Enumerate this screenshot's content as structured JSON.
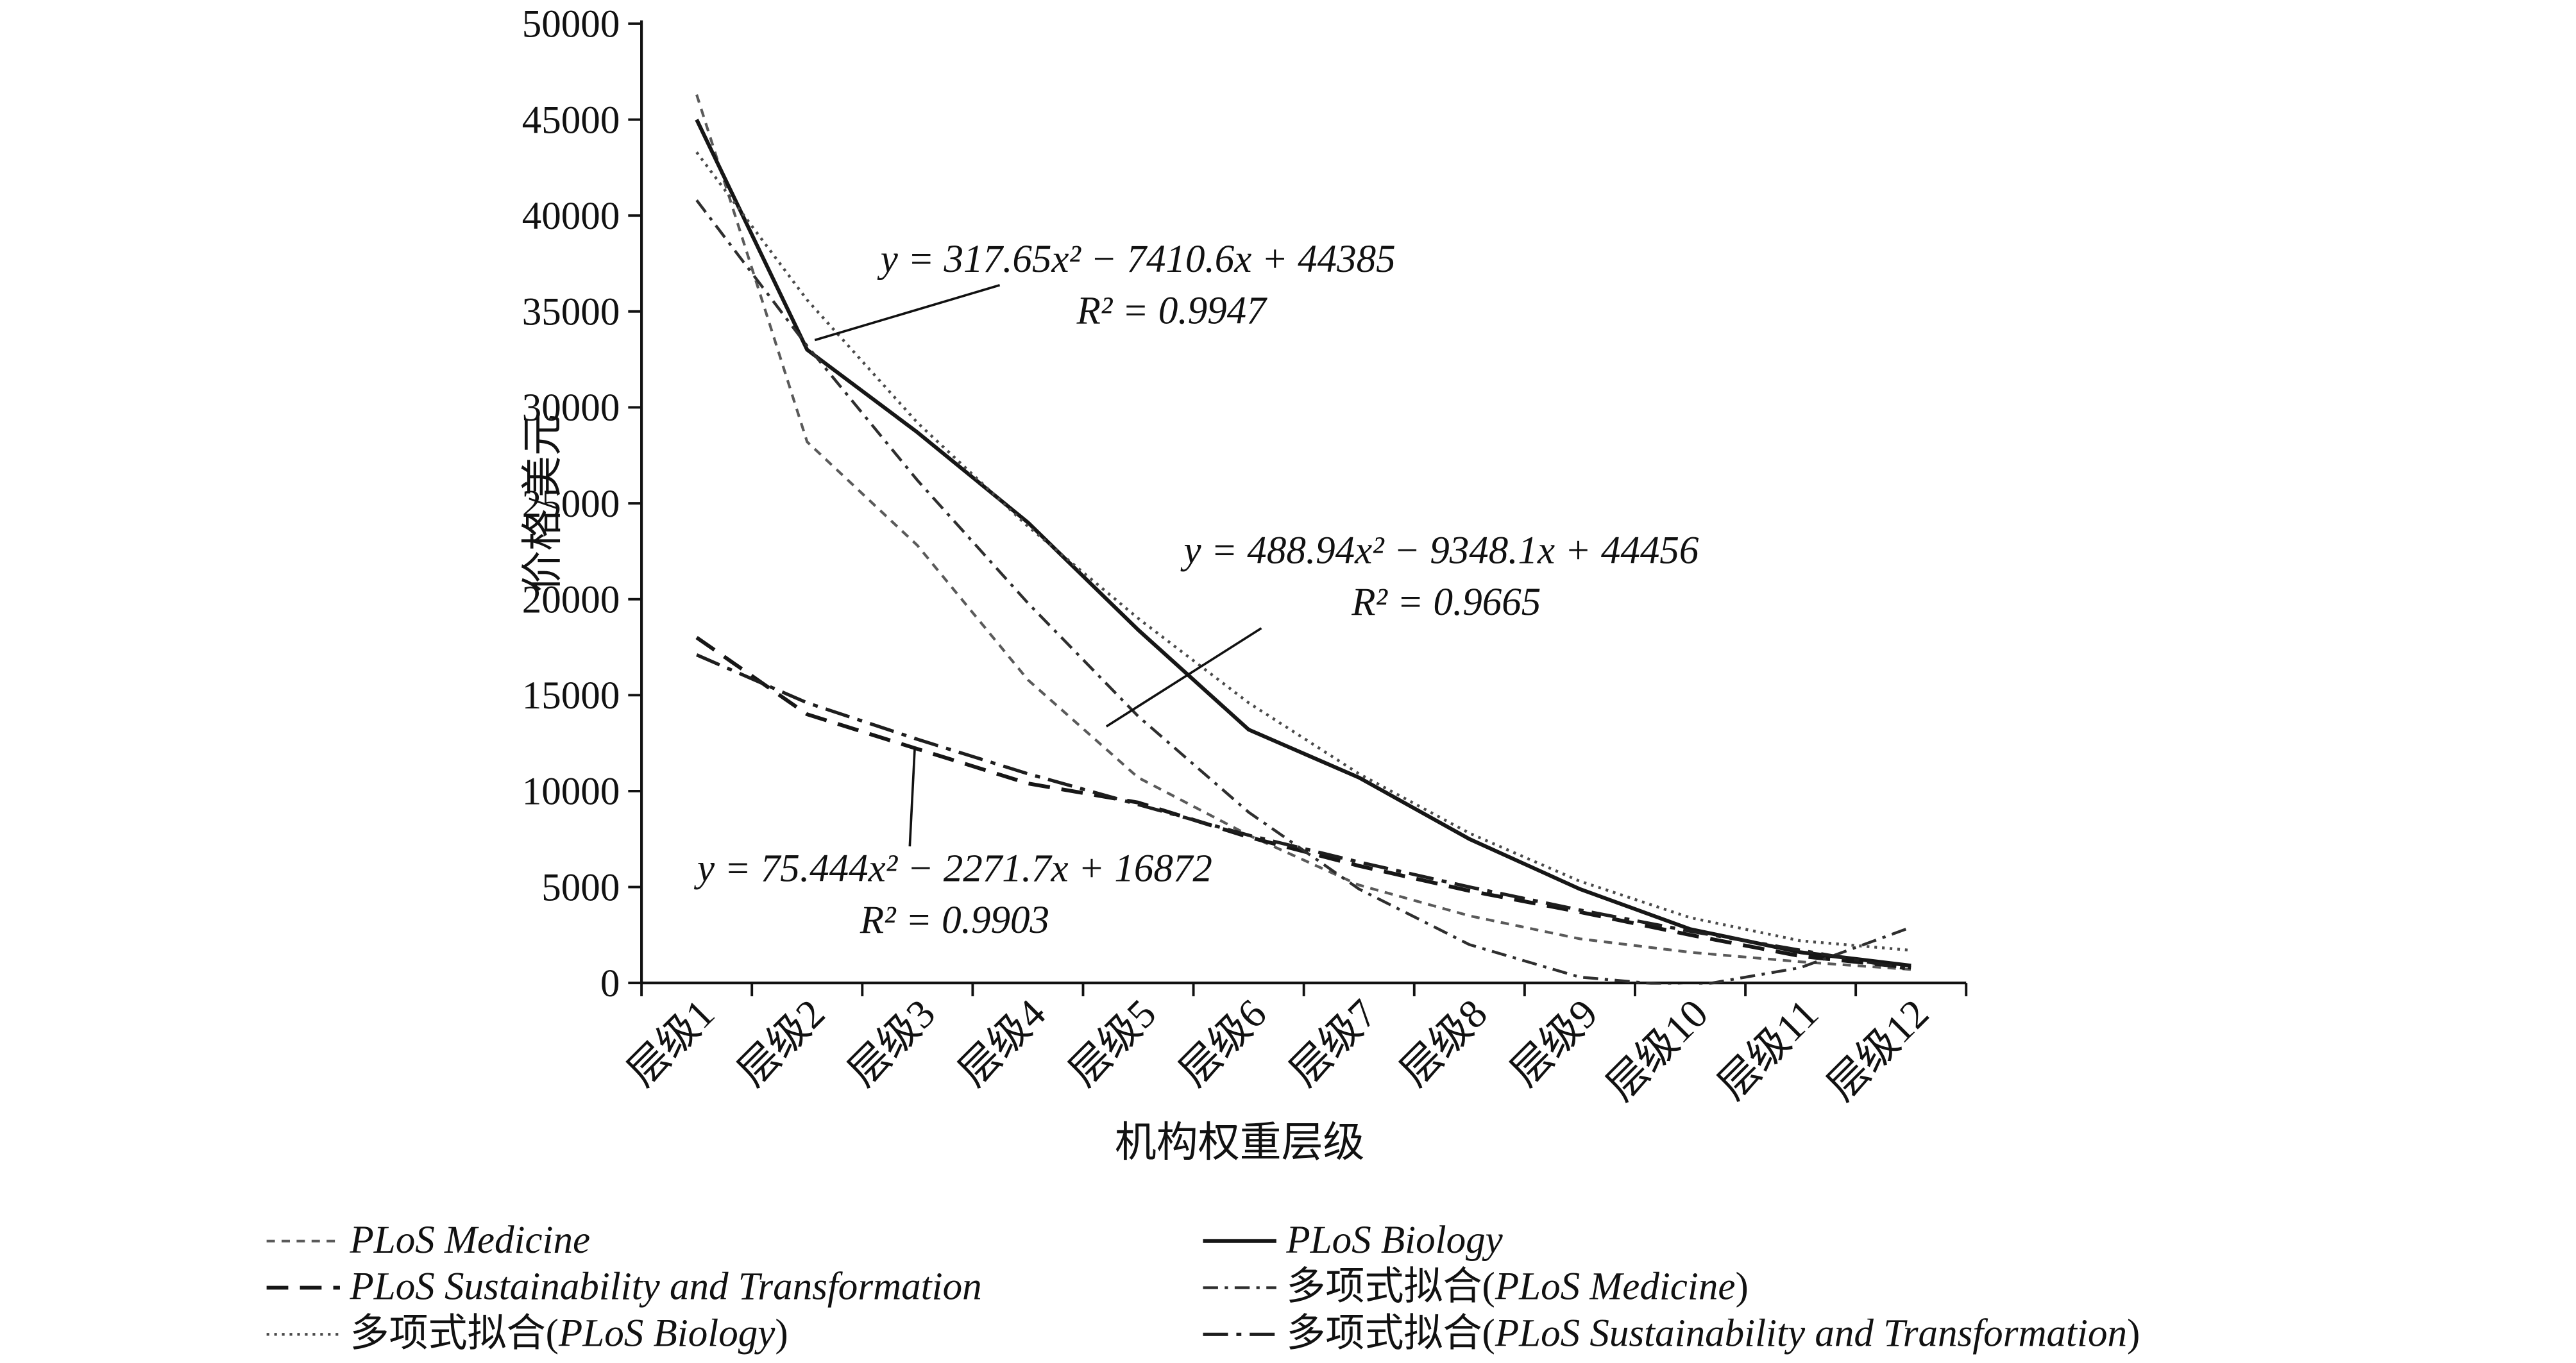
{
  "chart_data": {
    "type": "line",
    "title": "",
    "xlabel": "机构权重层级",
    "ylabel": "价格/美元",
    "ylim": [
      0,
      50000
    ],
    "ytick_step": 5000,
    "grid": false,
    "legend_position": "bottom",
    "categories": [
      "层级1",
      "层级2",
      "层级3",
      "层级4",
      "层级5",
      "层级6",
      "层级7",
      "层级8",
      "层级9",
      "层级10",
      "层级11",
      "层级12"
    ],
    "series": [
      {
        "name": "PLoS Medicine",
        "dash": "short-dash",
        "values": [
          46300,
          28200,
          22800,
          15800,
          10700,
          7700,
          5100,
          3500,
          2300,
          1600,
          1100,
          700
        ]
      },
      {
        "name": "PLoS Biology",
        "dash": "solid",
        "values": [
          45000,
          33000,
          28700,
          24000,
          18400,
          13200,
          10700,
          7500,
          4900,
          2800,
          1600,
          900
        ]
      },
      {
        "name": "PLoS Sustainability and Transformation",
        "dash": "long-dash",
        "values": [
          18000,
          14000,
          12200,
          10400,
          9400,
          7600,
          6100,
          4800,
          3700,
          2500,
          1400,
          800
        ]
      },
      {
        "name": "多项式拟合(PLoS Medicine)",
        "dash": "dash-dot",
        "values": [
          40800,
          33200,
          26200,
          19800,
          13900,
          8900,
          4900,
          2000,
          300,
          -200,
          800,
          2900
        ]
      },
      {
        "name": "多项式拟合(PLoS Biology)",
        "dash": "dot",
        "values": [
          43300,
          35600,
          29200,
          23800,
          19000,
          14600,
          10900,
          7800,
          5300,
          3400,
          2200,
          1700
        ]
      },
      {
        "name": "多项式拟合(PLoS Sustainability and Transformation)",
        "dash": "long-dash-dot",
        "values": [
          17100,
          14600,
          12700,
          10900,
          9300,
          7700,
          6300,
          5000,
          3800,
          2700,
          1700,
          700
        ]
      }
    ],
    "annotations": [
      {
        "text": "y = 317.65x² − 7410.6x + 44385",
        "r2": "R² = 0.9947",
        "tx": 683,
        "ty": 163,
        "t2x": 703,
        "t2y": 194,
        "leader": [
          600,
          171,
          489,
          204
        ]
      },
      {
        "text": "y = 488.94x² − 9348.1x + 44456",
        "r2": "R² = 0.9665",
        "tx": 865,
        "ty": 338,
        "t2x": 868,
        "t2y": 369,
        "leader": [
          757,
          377,
          664,
          436
        ]
      },
      {
        "text": "y = 75.444x² − 2271.7x + 16872",
        "r2": "R² = 0.9903",
        "tx": 573,
        "ty": 529,
        "t2x": 573,
        "t2y": 560,
        "leader": [
          546,
          508,
          549,
          449
        ]
      }
    ],
    "legend": {
      "row_y": [
        752,
        780,
        808
      ],
      "columns": [
        {
          "x_line": 160,
          "x_text": 210,
          "items": [
            0,
            2,
            4
          ]
        },
        {
          "x_line": 722,
          "x_text": 772,
          "items": [
            1,
            3,
            5
          ]
        }
      ]
    }
  }
}
